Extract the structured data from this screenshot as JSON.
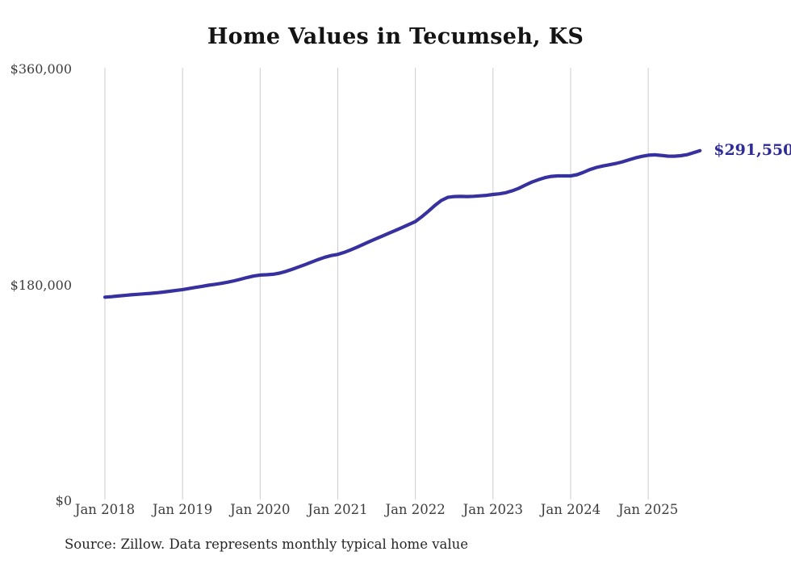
{
  "header": {
    "title": "Home Values in Tecumseh, KS"
  },
  "chart_data": {
    "type": "line",
    "title": "Home Values in Tecumseh, KS",
    "series_name": "Monthly typical home value",
    "x_start": "Jan 2018",
    "x_end": "Sep 2025",
    "x_interval": "monthly",
    "x_tick_labels": [
      "Jan 2018",
      "Jan 2019",
      "Jan 2020",
      "Jan 2021",
      "Jan 2022",
      "Jan 2023",
      "Jan 2024",
      "Jan 2025"
    ],
    "y_tick_labels": [
      "$360,000",
      "$180,000",
      "$0"
    ],
    "y_tick_values": [
      360000,
      180000,
      0
    ],
    "ylim": [
      0,
      360000
    ],
    "grid": "vertical-only",
    "legend": "none",
    "end_label": "$291,550",
    "latest_value": 291550,
    "line_color": "#37319f",
    "end_label_color": "#2d2a99",
    "gridline_color": "#cccccc",
    "values": [
      169400,
      169800,
      170300,
      170800,
      171300,
      171700,
      172100,
      172500,
      173000,
      173600,
      174300,
      175000,
      175700,
      176600,
      177500,
      178400,
      179300,
      180100,
      180900,
      181900,
      183000,
      184400,
      185800,
      187000,
      187800,
      188100,
      188500,
      189400,
      190900,
      192700,
      194700,
      196600,
      198700,
      200800,
      202700,
      204100,
      205000,
      206700,
      208800,
      211100,
      213500,
      215900,
      218300,
      220600,
      222900,
      225200,
      227600,
      230000,
      232400,
      236500,
      241000,
      245800,
      250000,
      252600,
      253300,
      253400,
      253300,
      253500,
      253900,
      254300,
      255000,
      255600,
      256500,
      258100,
      260200,
      262800,
      265300,
      267300,
      269000,
      270100,
      270500,
      270500,
      270500,
      271500,
      273500,
      275800,
      277600,
      278800,
      279800,
      280900,
      282200,
      283900,
      285500,
      286800,
      287700,
      288100,
      287600,
      287000,
      286900,
      287300,
      288200,
      289800,
      291550
    ]
  },
  "footer": {
    "source": "Source: Zillow. Data represents monthly typical home value"
  }
}
